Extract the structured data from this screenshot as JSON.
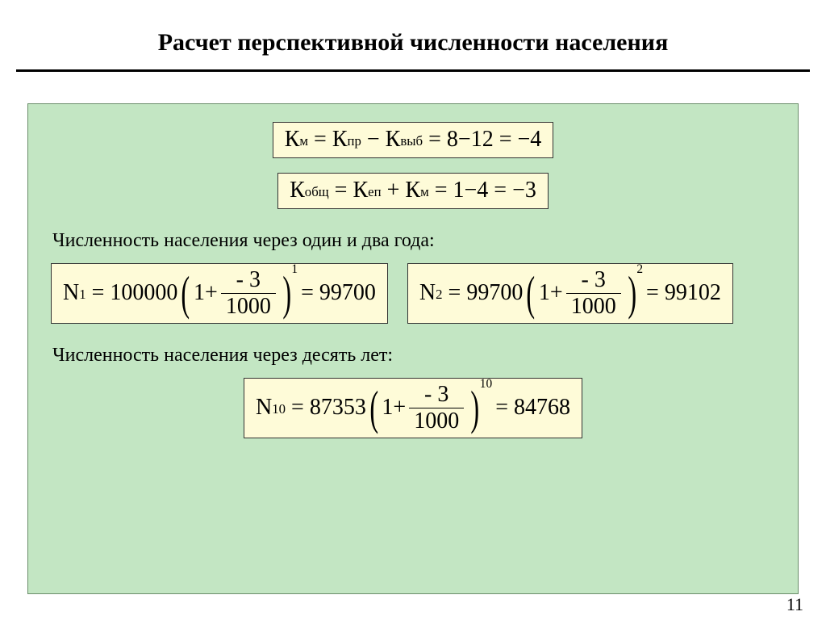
{
  "slide": {
    "title": "Расчет перспективной численности населения",
    "page_number": "11",
    "background_color": "#ffffff",
    "panel_color": "#c3e6c3",
    "formula_box_color": "#fefbd8"
  },
  "formulas": {
    "km": {
      "lhs_symbol": "К",
      "lhs_sub": "м",
      "term1_symbol": "К",
      "term1_sub": "пр",
      "op1": "−",
      "term2_symbol": "К",
      "term2_sub": "выб",
      "eq": "=",
      "val1": "8",
      "op2": "−",
      "val2": "12",
      "result": "−4"
    },
    "kobsh": {
      "lhs_symbol": "К",
      "lhs_sub": "общ",
      "term1_symbol": "К",
      "term1_sub": "еп",
      "op1": "+",
      "term2_symbol": "К",
      "term2_sub": "м",
      "eq": "=",
      "val1": "1",
      "op2": "−",
      "val2": "4",
      "result": "−3"
    },
    "caption_1_2": "Численность населения через один и два года:",
    "n1": {
      "lhs_symbol": "N",
      "lhs_sub": "1",
      "base": "100000",
      "inside_const": "1",
      "inside_op": "+",
      "frac_num": "- 3",
      "frac_den": "1000",
      "exp": "1",
      "result": "99700"
    },
    "n2": {
      "lhs_symbol": "N",
      "lhs_sub": "2",
      "base": "99700",
      "inside_const": "1",
      "inside_op": "+",
      "frac_num": "- 3",
      "frac_den": "1000",
      "exp": "2",
      "result": "99102"
    },
    "caption_10": "Численность населения через десять лет:",
    "n10": {
      "lhs_symbol": "N",
      "lhs_sub": "10",
      "base": "87353",
      "inside_const": "1",
      "inside_op": "+",
      "frac_num": "- 3",
      "frac_den": "1000",
      "exp": "10",
      "result": "84768"
    }
  }
}
